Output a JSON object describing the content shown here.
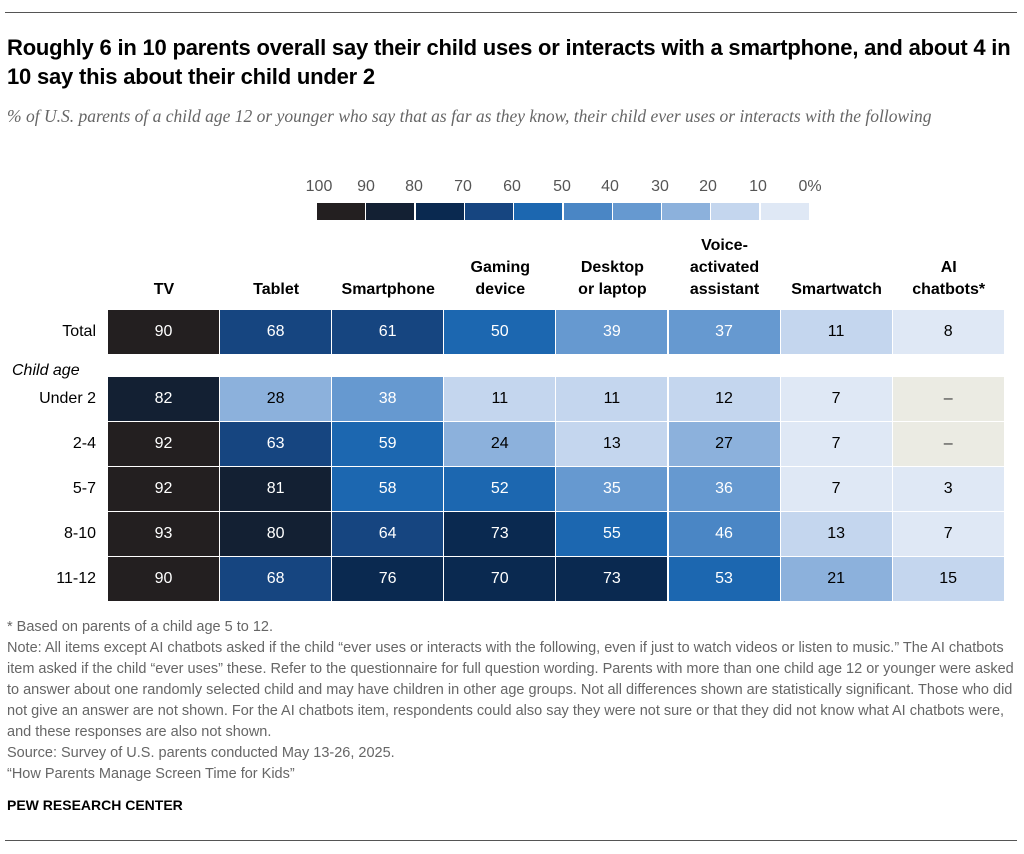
{
  "chart_data": {
    "type": "table",
    "title": "Roughly 6 in 10 parents overall say their child uses or interacts with a smartphone, and about 4 in 10 say this about their child under 2",
    "subtitle": "% of U.S. parents of a child age 12 or younger who say that as far as they know, their child ever uses or interacts with the following",
    "legend": {
      "labels": [
        "100",
        "90",
        "80",
        "70",
        "60",
        "50",
        "40",
        "30",
        "20",
        "10",
        "0%"
      ],
      "colors": [
        "#231f20",
        "#132033",
        "#0a2950",
        "#164580",
        "#1c67b0",
        "#4a86c5",
        "#6699d0",
        "#8cb1dc",
        "#c4d6ee",
        "#dfe8f5"
      ],
      "na_color": "#ebebe3"
    },
    "columns": [
      "TV",
      "Tablet",
      "Smartphone",
      "Gaming device",
      "Desktop or laptop",
      "Voice-activated assistant",
      "Smartwatch",
      "AI chatbots*"
    ],
    "column_lines": [
      [
        "TV"
      ],
      [
        "Tablet"
      ],
      [
        "Smartphone"
      ],
      [
        "Gaming",
        "device"
      ],
      [
        "Desktop",
        "or laptop"
      ],
      [
        "Voice-",
        "activated",
        "assistant"
      ],
      [
        "Smartwatch"
      ],
      [
        "AI",
        "chatbots*"
      ]
    ],
    "group_label": "Child age",
    "rows": [
      {
        "label": "Total",
        "values": [
          90,
          68,
          61,
          50,
          39,
          37,
          11,
          8
        ]
      },
      {
        "label": "Under 2",
        "values": [
          82,
          28,
          38,
          11,
          11,
          12,
          7,
          null
        ]
      },
      {
        "label": "2-4",
        "values": [
          92,
          63,
          59,
          24,
          13,
          27,
          7,
          null
        ]
      },
      {
        "label": "5-7",
        "values": [
          92,
          81,
          58,
          52,
          35,
          36,
          7,
          3
        ]
      },
      {
        "label": "8-10",
        "values": [
          93,
          80,
          64,
          73,
          55,
          46,
          13,
          7
        ]
      },
      {
        "label": "11-12",
        "values": [
          90,
          68,
          76,
          70,
          73,
          53,
          21,
          15
        ]
      }
    ],
    "na_text": "–"
  },
  "notes": [
    "* Based on parents of a child age 5 to 12.",
    "Note: All items except AI chatbots asked if the child “ever uses or interacts with the following, even if just to watch videos or listen to music.” The AI chatbots item asked if the child “ever uses” these. Refer to the questionnaire for full question wording. Parents with more than one child age 12 or younger were asked to answer about one randomly selected child and may have children in other age groups. Not all differences shown are statistically significant. Those who did not give an answer are not shown. For the AI chatbots item, respondents could also say they were not sure or that they did not know what AI chatbots were, and these responses are also not shown.",
    "Source: Survey of U.S. parents conducted May 13-26, 2025.",
    "“How Parents Manage Screen Time for Kids”"
  ],
  "brand": "PEW RESEARCH CENTER"
}
